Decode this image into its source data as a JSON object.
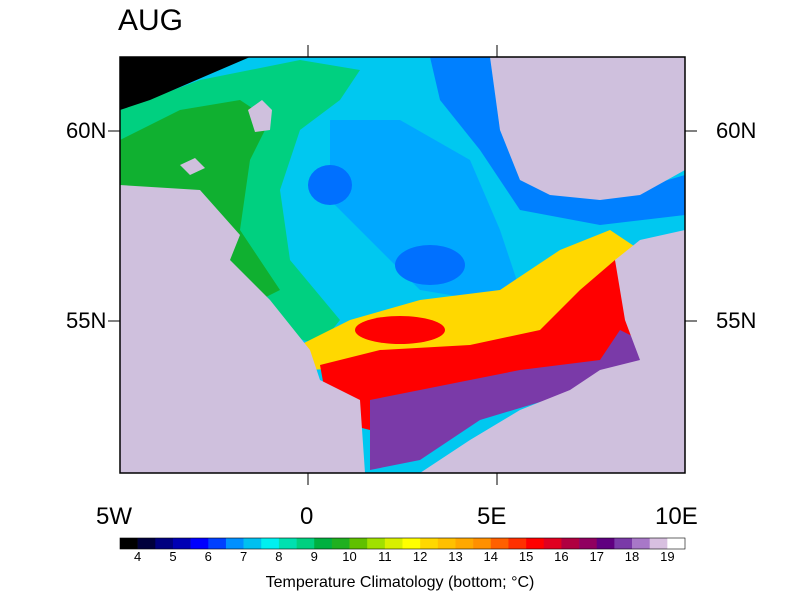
{
  "title": "AUG",
  "lat_labels": [
    "60N",
    "55N"
  ],
  "lon_labels": [
    "5W",
    "0",
    "5E",
    "10E"
  ],
  "map": {
    "lon_range": [
      -5,
      10
    ],
    "lat_range": [
      51,
      62
    ],
    "land_color": "#cfc0dd",
    "variable": "Temperature Climatology (bottom; °C)"
  },
  "colorbar": {
    "title": "Temperature Climatology (bottom; ",
    "unit": "oC",
    "title_end": ")",
    "tick_labels": [
      "4",
      "5",
      "6",
      "7",
      "8",
      "9",
      "10",
      "11",
      "12",
      "13",
      "14",
      "15",
      "16",
      "17",
      "18",
      "19"
    ],
    "levels_step": 0.5,
    "colors": [
      "#000000",
      "#00003c",
      "#000080",
      "#0000b4",
      "#0000ff",
      "#0040ff",
      "#0090ff",
      "#00c0f0",
      "#00f0f0",
      "#00e0b0",
      "#00d080",
      "#00b040",
      "#20b020",
      "#60c000",
      "#a0e000",
      "#d8f000",
      "#ffff00",
      "#ffd800",
      "#ffc000",
      "#ffa800",
      "#ff9000",
      "#ff6000",
      "#ff3000",
      "#ff0000",
      "#e00020",
      "#b00040",
      "#900060",
      "#600080",
      "#7a3aa8",
      "#a878c8",
      "#d8c0e0",
      "#ffffff"
    ]
  }
}
